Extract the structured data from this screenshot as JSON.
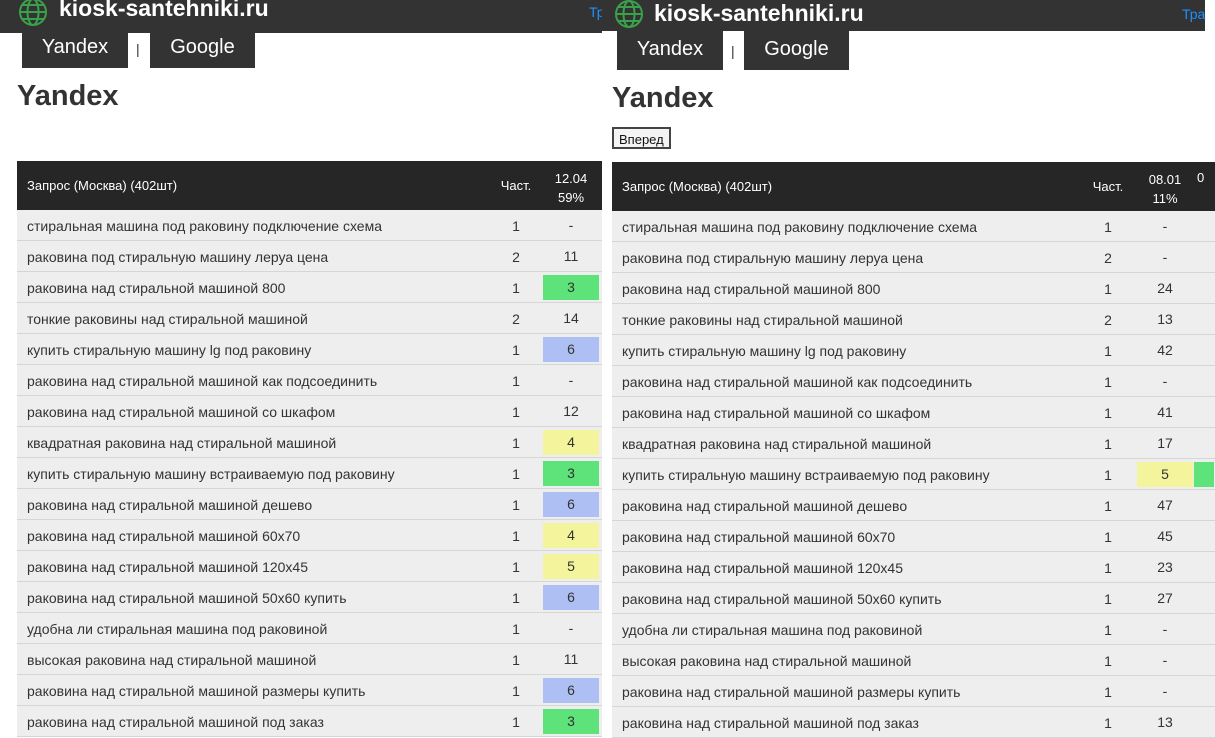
{
  "colors": {
    "green": "#5ee27a",
    "blue": "#aebff3",
    "yellow": "#f3f49c",
    "header": "#262626",
    "bar": "#333333",
    "link": "#1e90ff"
  },
  "icons": {
    "site": "globe-icon"
  },
  "panels": [
    {
      "site_title": "kiosk-santehniki.ru",
      "top_right_fragment": "Тр",
      "tabs": [
        {
          "label": "Yandex"
        },
        {
          "label": "Google"
        }
      ],
      "tab_separator": "|",
      "heading": "Yandex",
      "table": {
        "query_header": "Запрос (Москва) (402шт)",
        "freq_header": "Част.",
        "date_header": "12.04",
        "percent_header": "59%",
        "rows": [
          {
            "query": "стиральная машина под раковину подключение схема",
            "freq": "1",
            "pos": "-",
            "color": ""
          },
          {
            "query": "раковина под стиральную машину леруа цена",
            "freq": "2",
            "pos": "11",
            "color": ""
          },
          {
            "query": "раковина над стиральной машиной 800",
            "freq": "1",
            "pos": "3",
            "color": "green"
          },
          {
            "query": "тонкие раковины над стиральной машиной",
            "freq": "2",
            "pos": "14",
            "color": ""
          },
          {
            "query": "купить стиральную машину lg под раковину",
            "freq": "1",
            "pos": "6",
            "color": "blue"
          },
          {
            "query": "раковина над стиральной машиной как подсоединить",
            "freq": "1",
            "pos": "-",
            "color": ""
          },
          {
            "query": "раковина над стиральной машиной со шкафом",
            "freq": "1",
            "pos": "12",
            "color": ""
          },
          {
            "query": "квадратная раковина над стиральной машиной",
            "freq": "1",
            "pos": "4",
            "color": "yellow"
          },
          {
            "query": "купить стиральную машину встраиваемую под раковину",
            "freq": "1",
            "pos": "3",
            "color": "green"
          },
          {
            "query": "раковина над стиральной машиной дешево",
            "freq": "1",
            "pos": "6",
            "color": "blue"
          },
          {
            "query": "раковина над стиральной машиной 60х70",
            "freq": "1",
            "pos": "4",
            "color": "yellow"
          },
          {
            "query": "раковина над стиральной машиной 120х45",
            "freq": "1",
            "pos": "5",
            "color": "yellow"
          },
          {
            "query": "раковина над стиральной машиной 50х60 купить",
            "freq": "1",
            "pos": "6",
            "color": "blue"
          },
          {
            "query": "удобна ли стиральная машина под раковиной",
            "freq": "1",
            "pos": "-",
            "color": ""
          },
          {
            "query": "высокая раковина над стиральной машиной",
            "freq": "1",
            "pos": "11",
            "color": ""
          },
          {
            "query": "раковина над стиральной машиной размеры купить",
            "freq": "1",
            "pos": "6",
            "color": "blue"
          },
          {
            "query": "раковина над стиральной машиной под заказ",
            "freq": "1",
            "pos": "3",
            "color": "green"
          }
        ]
      }
    },
    {
      "site_title": "kiosk-santehniki.ru",
      "top_right_fragment": "Тра",
      "tabs": [
        {
          "label": "Yandex"
        },
        {
          "label": "Google"
        }
      ],
      "tab_separator": "|",
      "heading": "Yandex",
      "forward_button": "Вперед",
      "table": {
        "query_header": "Запрос (Москва) (402шт)",
        "freq_header": "Част.",
        "date_header": "08.01",
        "percent_header": "11%",
        "next_col_fragment": "0",
        "rows": [
          {
            "query": "стиральная машина под раковину подключение схема",
            "freq": "1",
            "pos": "-",
            "color": ""
          },
          {
            "query": "раковина под стиральную машину леруа цена",
            "freq": "2",
            "pos": "-",
            "color": ""
          },
          {
            "query": "раковина над стиральной машиной 800",
            "freq": "1",
            "pos": "24",
            "color": ""
          },
          {
            "query": "тонкие раковины над стиральной машиной",
            "freq": "2",
            "pos": "13",
            "color": ""
          },
          {
            "query": "купить стиральную машину lg под раковину",
            "freq": "1",
            "pos": "42",
            "color": ""
          },
          {
            "query": "раковина над стиральной машиной как подсоединить",
            "freq": "1",
            "pos": "-",
            "color": ""
          },
          {
            "query": "раковина над стиральной машиной со шкафом",
            "freq": "1",
            "pos": "41",
            "color": ""
          },
          {
            "query": "квадратная раковина над стиральной машиной",
            "freq": "1",
            "pos": "17",
            "color": ""
          },
          {
            "query": "купить стиральную машину встраиваемую под раковину",
            "freq": "1",
            "pos": "5",
            "color": "yellow",
            "next_color": "green"
          },
          {
            "query": "раковина над стиральной машиной дешево",
            "freq": "1",
            "pos": "47",
            "color": ""
          },
          {
            "query": "раковина над стиральной машиной 60х70",
            "freq": "1",
            "pos": "45",
            "color": ""
          },
          {
            "query": "раковина над стиральной машиной 120х45",
            "freq": "1",
            "pos": "23",
            "color": ""
          },
          {
            "query": "раковина над стиральной машиной 50х60 купить",
            "freq": "1",
            "pos": "27",
            "color": ""
          },
          {
            "query": "удобна ли стиральная машина под раковиной",
            "freq": "1",
            "pos": "-",
            "color": ""
          },
          {
            "query": "высокая раковина над стиральной машиной",
            "freq": "1",
            "pos": "-",
            "color": ""
          },
          {
            "query": "раковина над стиральной машиной размеры купить",
            "freq": "1",
            "pos": "-",
            "color": ""
          },
          {
            "query": "раковина над стиральной машиной под заказ",
            "freq": "1",
            "pos": "13",
            "color": ""
          }
        ]
      }
    }
  ]
}
